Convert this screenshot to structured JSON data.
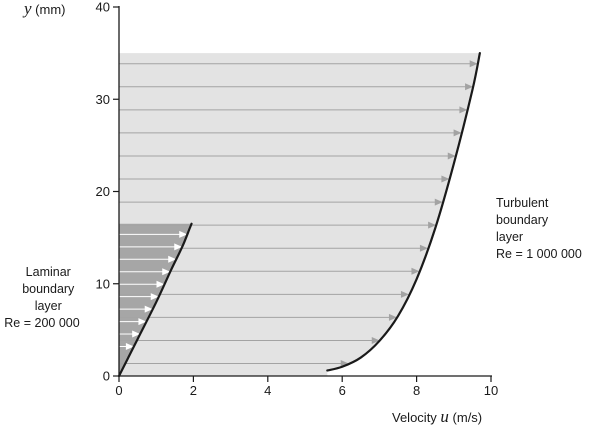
{
  "chart_data": {
    "type": "line",
    "xlabel": {
      "prefix": "Velocity ",
      "symbol": "u",
      "unit": " (m/s)"
    },
    "ylabel": {
      "symbol": "y",
      "unit": " (mm)"
    },
    "xlim": [
      0,
      10
    ],
    "ylim": [
      0,
      40
    ],
    "xticks": [
      "0",
      "2",
      "4",
      "6",
      "8",
      "10"
    ],
    "yticks": [
      "0",
      "10",
      "20",
      "30",
      "40"
    ],
    "grid": false,
    "series": [
      {
        "name": "Laminar boundary layer Re = 200 000",
        "thickness_mm": 16.5,
        "x": [
          0.0,
          0.5,
          1.0,
          1.4,
          1.7,
          1.9,
          1.95
        ],
        "y": [
          0.0,
          4.0,
          8.0,
          11.5,
          14.0,
          16.0,
          16.5
        ],
        "fill": "#a6a6a6",
        "arrow_color": "#ffffff"
      },
      {
        "name": "Turbulent boundary layer Re = 1 000 000",
        "thickness_mm": 35,
        "x": [
          5.6,
          6.0,
          6.5,
          7.0,
          7.5,
          8.0,
          8.5,
          9.0,
          9.5,
          9.7
        ],
        "y": [
          0.6,
          1.0,
          2.0,
          3.8,
          6.5,
          10.5,
          16.0,
          23.0,
          31.0,
          35.0
        ],
        "fill": "#e3e3e3",
        "arrow_color": "#a3a3a3"
      }
    ],
    "annotations": [
      {
        "lines": [
          "Laminar",
          "boundary",
          "layer",
          "Re = 200 000"
        ]
      },
      {
        "lines": [
          "Turbulent",
          "boundary",
          "layer",
          "Re = 1 000 000"
        ]
      }
    ],
    "colors": {
      "curve": "#1a1a1a",
      "axis": "#1a1a1a",
      "text": "#1a1a1a"
    }
  }
}
